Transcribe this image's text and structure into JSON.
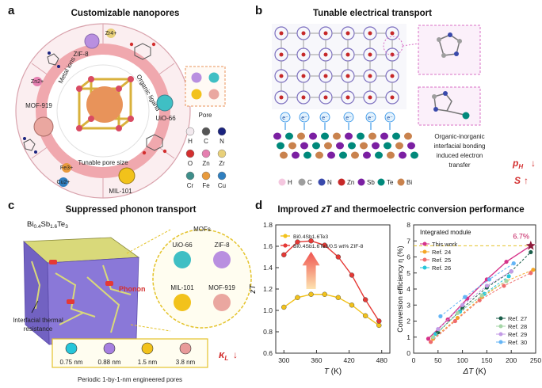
{
  "panels": {
    "a": {
      "label": "a",
      "title": "Customizable  nanopores",
      "mofs": [
        "ZIF-8",
        "UiO-66",
        "MOF-919",
        "MIL-101"
      ],
      "ions": [
        "Zr4+",
        "Zn2+",
        "Fe3+",
        "Cu2+"
      ],
      "ring_labels": {
        "metal": "Metal ions",
        "ligand": "Organic ligand",
        "pore": "Tunable pore size"
      },
      "pore_box": "Pore",
      "elements": [
        "H",
        "C",
        "N",
        "O",
        "Zn",
        "Zr",
        "Cr",
        "Fe",
        "Cu"
      ],
      "element_colors": [
        "#f2e9ee",
        "#555555",
        "#1a237e",
        "#d32f2f",
        "#e57fb0",
        "#e8d07a",
        "#3e8e8a",
        "#e89a3c",
        "#2f7fbf"
      ]
    },
    "b": {
      "label": "b",
      "title": "Tunable electrical transport",
      "caption": [
        "Organic-inorganic",
        "interfacial bonding",
        "induced electron",
        "transfer"
      ],
      "electron": "e⁻",
      "legend": [
        "H",
        "C",
        "N",
        "Zn",
        "Sb",
        "Te",
        "Bi"
      ],
      "legend_colors": [
        "#f4c7df",
        "#9e9e9e",
        "#3949ab",
        "#c62828",
        "#7b1fa2",
        "#00897b",
        "#c9824d"
      ],
      "pH": "p",
      "pH_sub": "H",
      "S": "S"
    },
    "c": {
      "label": "c",
      "title": "Suppressed phonon transport",
      "material": {
        "base": "Bi",
        "sub1": "0.4",
        "mid": "Sb",
        "sub2": "1.6",
        "end": "Te",
        "sub3": "3"
      },
      "mofs_title": "MOFs",
      "mofs": [
        "UiO-66",
        "ZIF-8",
        "MIL-101",
        "MOF-919"
      ],
      "phonon": "Phonon",
      "interfacial": [
        "Interfacial thermal",
        "resistance"
      ],
      "pore_sizes": [
        "0.75 nm",
        "0.88 nm",
        "1.5 nm",
        "3.8 nm"
      ],
      "pore_colors": [
        "#26c6da",
        "#a67fe0",
        "#f2c21b",
        "#e89a9a"
      ],
      "bottom_text": "Periodic 1-by-1-nm engineered pores",
      "kL": "κ",
      "kL_sub": "L"
    },
    "d": {
      "label": "d",
      "title_pre": "Improved ",
      "title_zt": "zT",
      "title_post": " and thermoelectric conversion performance"
    }
  },
  "chart_data": [
    {
      "type": "line",
      "xlabel": "T (K)",
      "ylabel": "zT",
      "xlim": [
        285,
        495
      ],
      "ylim": [
        0.6,
        1.8
      ],
      "xticks": [
        300,
        360,
        420,
        480
      ],
      "yticks": [
        0.6,
        0.8,
        1.0,
        1.2,
        1.4,
        1.6,
        1.8
      ],
      "legend_position": "top-left",
      "series": [
        {
          "name": "Bi0.4Sb1.6Te3",
          "color": "#f2c21b",
          "x": [
            300,
            325,
            350,
            375,
            400,
            425,
            450,
            475
          ],
          "y": [
            1.03,
            1.12,
            1.15,
            1.15,
            1.12,
            1.05,
            0.95,
            0.86
          ]
        },
        {
          "name": "Bi0.4Sb1.6Te3/0.5 wt% ZIF-8",
          "color": "#e53935",
          "x": [
            300,
            325,
            350,
            375,
            400,
            425,
            450,
            475
          ],
          "y": [
            1.52,
            1.64,
            1.65,
            1.61,
            1.5,
            1.33,
            1.1,
            0.9
          ]
        }
      ]
    },
    {
      "type": "scatter",
      "title": "Integrated module",
      "xlabel": "ΔT (K)",
      "ylabel": "Conversion efficiency η (%)",
      "xlim": [
        0,
        250
      ],
      "ylim": [
        0,
        8
      ],
      "xticks": [
        0,
        50,
        100,
        150,
        200,
        250
      ],
      "yticks": [
        0,
        1,
        2,
        3,
        4,
        5,
        6,
        7,
        8
      ],
      "annotation": "6.7%",
      "legend_top": [
        "This work",
        "Ref. 24",
        "Ref. 25",
        "Ref. 26"
      ],
      "legend_bottom": [
        "Ref. 27",
        "Ref. 28",
        "Ref. 29",
        "Ref. 30"
      ],
      "series": [
        {
          "name": "This work",
          "color": "#d6338a",
          "x": [
            30,
            70,
            110,
            150,
            190,
            240
          ],
          "y": [
            0.9,
            2.1,
            3.4,
            4.6,
            5.7,
            6.7
          ]
        },
        {
          "name": "Ref. 24",
          "color": "#f5a623",
          "x": [
            40,
            90,
            140,
            190,
            245
          ],
          "y": [
            0.9,
            2.2,
            3.5,
            4.5,
            5.2
          ]
        },
        {
          "name": "Ref. 25",
          "color": "#ef6c6c",
          "x": [
            35,
            85,
            135,
            185,
            240
          ],
          "y": [
            0.7,
            2.0,
            3.3,
            4.2,
            5.0
          ]
        },
        {
          "name": "Ref. 26",
          "color": "#26c6da",
          "x": [
            45,
            95,
            145,
            195
          ],
          "y": [
            1.2,
            2.6,
            3.7,
            4.8
          ]
        },
        {
          "name": "Ref. 27",
          "color": "#1b5e4a",
          "x": [
            50,
            100,
            150,
            200,
            240
          ],
          "y": [
            1.3,
            2.8,
            4.1,
            5.1,
            6.3
          ]
        },
        {
          "name": "Ref. 28",
          "color": "#a5d6a7",
          "x": [
            40,
            90,
            140,
            190
          ],
          "y": [
            1.0,
            2.5,
            3.6,
            4.5
          ]
        },
        {
          "name": "Ref. 29",
          "color": "#c39be6",
          "x": [
            50,
            100,
            150,
            200
          ],
          "y": [
            1.5,
            3.0,
            4.2,
            5.1
          ]
        },
        {
          "name": "Ref. 30",
          "color": "#64b5f6",
          "x": [
            55,
            105,
            155,
            205
          ],
          "y": [
            2.3,
            3.5,
            4.6,
            5.6
          ]
        }
      ]
    }
  ]
}
